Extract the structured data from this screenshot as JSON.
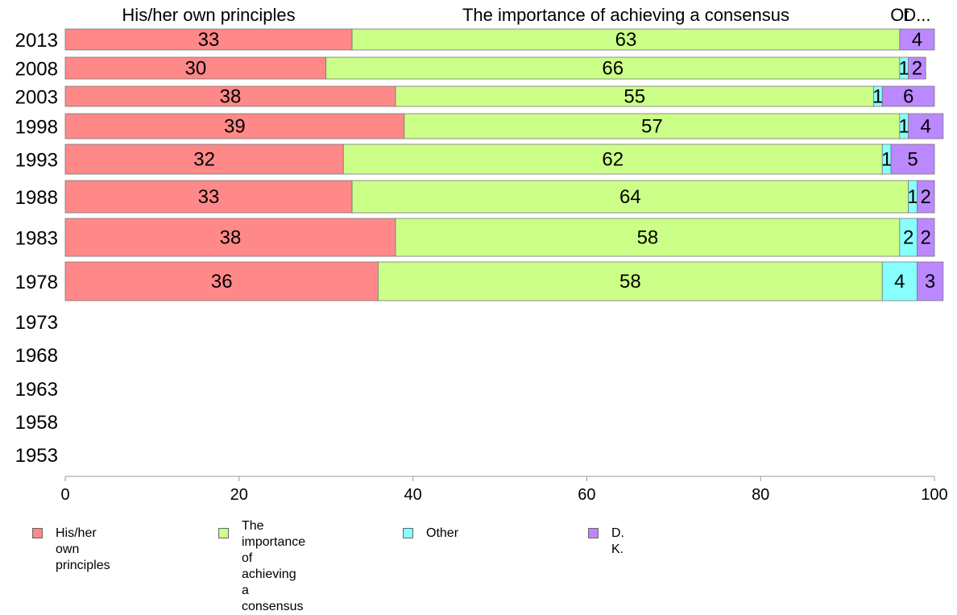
{
  "chart_data": {
    "type": "bar",
    "orientation": "horizontal",
    "stacked": true,
    "categories": [
      "2013",
      "2008",
      "2003",
      "1998",
      "1993",
      "1988",
      "1983",
      "1978",
      "1973",
      "1968",
      "1963",
      "1958",
      "1953"
    ],
    "series": [
      {
        "name": "His/her own principles",
        "color": "#ff8888",
        "values": [
          33,
          30,
          38,
          39,
          32,
          33,
          38,
          36,
          null,
          null,
          null,
          null,
          null
        ]
      },
      {
        "name": "The importance of achieving a consensus",
        "color": "#ccff88",
        "values": [
          63,
          66,
          55,
          57,
          62,
          64,
          58,
          58,
          null,
          null,
          null,
          null,
          null
        ]
      },
      {
        "name": "Other",
        "color": "#88ffff",
        "values": [
          0,
          1,
          1,
          1,
          1,
          1,
          2,
          4,
          null,
          null,
          null,
          null,
          null
        ]
      },
      {
        "name": "D. K.",
        "color": "#bb88ff",
        "values": [
          4,
          2,
          6,
          4,
          5,
          2,
          2,
          3,
          null,
          null,
          null,
          null,
          null
        ]
      }
    ],
    "segment_labels": [
      [
        "33",
        "63",
        "",
        "4"
      ],
      [
        "30",
        "66",
        "1",
        "2"
      ],
      [
        "38",
        "55",
        "1",
        "6"
      ],
      [
        "39",
        "57",
        "1",
        "4"
      ],
      [
        "32",
        "62",
        "1",
        "5"
      ],
      [
        "33",
        "64",
        "1",
        "2"
      ],
      [
        "38",
        "58",
        "2",
        "2"
      ],
      [
        "36",
        "58",
        "4",
        "3"
      ],
      [
        "",
        "",
        "",
        ""
      ],
      [
        "",
        "",
        "",
        ""
      ],
      [
        "",
        "",
        "",
        ""
      ],
      [
        "",
        "",
        "",
        ""
      ],
      [
        "",
        "",
        "",
        ""
      ]
    ],
    "top_labels": [
      "His/her own principles",
      "The importance of achieving a consensus",
      "Ot",
      "D..."
    ],
    "xlim": [
      0,
      100
    ],
    "xticks": [
      "0",
      "20",
      "40",
      "60",
      "80",
      "100"
    ],
    "grid": false,
    "legend_position": "bottom"
  },
  "legend": [
    {
      "label": "His/her own principles",
      "color": "#ff8888"
    },
    {
      "label": "The importance of\nachieving a consensus",
      "color": "#ccff88"
    },
    {
      "label": "Other",
      "color": "#88ffff"
    },
    {
      "label": "D. K.",
      "color": "#bb88ff"
    }
  ]
}
